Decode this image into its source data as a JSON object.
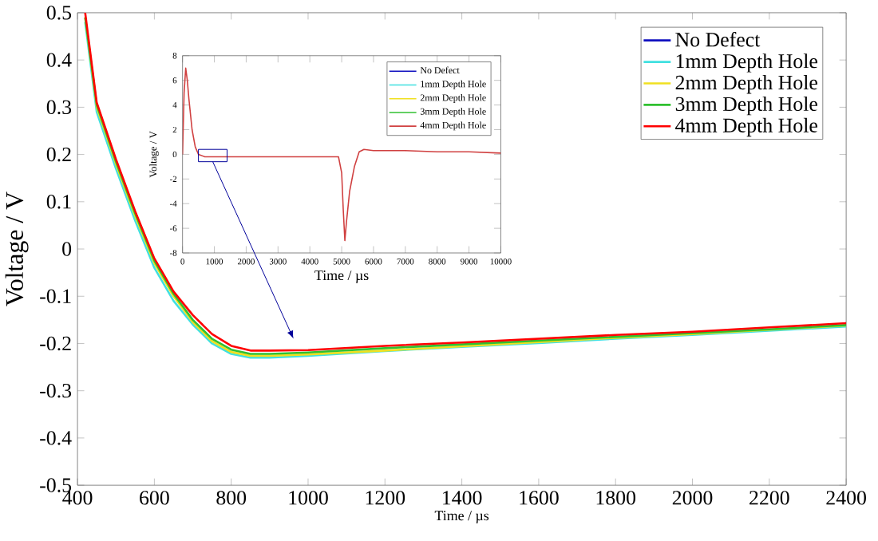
{
  "chart_data": [
    {
      "type": "line",
      "xlabel": "Time / µs",
      "ylabel": "Voltage / V",
      "xlim": [
        400,
        2400
      ],
      "ylim": [
        -0.5,
        0.5
      ],
      "xticks": [
        400,
        600,
        800,
        1000,
        1200,
        1400,
        1600,
        1800,
        2000,
        2200,
        2400
      ],
      "yticks": [
        -0.5,
        -0.4,
        -0.3,
        -0.2,
        -0.1,
        0,
        0.1,
        0.2,
        0.3,
        0.4,
        0.5
      ],
      "legend": "top right",
      "x": [
        420,
        450,
        500,
        550,
        600,
        650,
        700,
        750,
        800,
        850,
        900,
        1000,
        1200,
        1400,
        1600,
        1800,
        2000,
        2200,
        2400
      ],
      "series": [
        {
          "name": "No Defect",
          "color": "#1010c0",
          "values": [
            null,
            null,
            null,
            null,
            null,
            null,
            null,
            null,
            null,
            null,
            null,
            null,
            null,
            null,
            null,
            null,
            null,
            null,
            null
          ]
        },
        {
          "name": "1mm Depth Hole",
          "color": "#40e0e0",
          "values": [
            0.48,
            0.29,
            0.17,
            0.06,
            -0.04,
            -0.11,
            -0.16,
            -0.2,
            -0.222,
            -0.23,
            -0.23,
            -0.226,
            -0.216,
            -0.207,
            -0.199,
            -0.19,
            -0.182,
            -0.173,
            -0.164
          ]
        },
        {
          "name": "2mm Depth Hole",
          "color": "#f0e020",
          "values": [
            0.49,
            0.3,
            0.18,
            0.07,
            -0.03,
            -0.1,
            -0.155,
            -0.195,
            -0.218,
            -0.226,
            -0.226,
            -0.223,
            -0.215,
            -0.206,
            -0.197,
            -0.188,
            -0.18,
            -0.171,
            -0.162
          ]
        },
        {
          "name": "3mm Depth Hole",
          "color": "#30c030",
          "values": [
            0.49,
            0.305,
            0.185,
            0.075,
            -0.025,
            -0.095,
            -0.15,
            -0.19,
            -0.213,
            -0.222,
            -0.222,
            -0.219,
            -0.21,
            -0.202,
            -0.194,
            -0.186,
            -0.178,
            -0.17,
            -0.161
          ]
        },
        {
          "name": "4mm Depth Hole",
          "color": "#ff0000",
          "values": [
            0.5,
            0.31,
            0.19,
            0.08,
            -0.02,
            -0.09,
            -0.14,
            -0.18,
            -0.205,
            -0.215,
            -0.215,
            -0.214,
            -0.205,
            -0.198,
            -0.19,
            -0.182,
            -0.175,
            -0.166,
            -0.157
          ]
        }
      ]
    },
    {
      "type": "line",
      "xlabel": "Time / µs",
      "ylabel": "Voltage / V",
      "xlim": [
        0,
        10000
      ],
      "ylim": [
        -8,
        8
      ],
      "xticks": [
        0,
        1000,
        2000,
        3000,
        4000,
        5000,
        6000,
        7000,
        8000,
        9000,
        10000
      ],
      "yticks": [
        -8,
        -6,
        -4,
        -2,
        0,
        2,
        4,
        6,
        8
      ],
      "legend": "top right",
      "x": [
        0,
        50,
        100,
        150,
        200,
        300,
        400,
        500,
        700,
        1000,
        2000,
        3000,
        4000,
        4900,
        5000,
        5050,
        5100,
        5150,
        5250,
        5400,
        5550,
        5700,
        6000,
        7000,
        8000,
        9000,
        10000
      ],
      "series": [
        {
          "name": "No Defect",
          "color": "#1010c0",
          "values": [
            null,
            null,
            null,
            null,
            null,
            null,
            null,
            null,
            null,
            null,
            null,
            null,
            null,
            null,
            null,
            null,
            null,
            null,
            null,
            null,
            null,
            null,
            null,
            null,
            null,
            null,
            null
          ]
        },
        {
          "name": "1mm Depth Hole",
          "color": "#40e0e0",
          "values": [
            null,
            null,
            null,
            null,
            null,
            null,
            null,
            null,
            null,
            null,
            null,
            null,
            null,
            null,
            null,
            null,
            null,
            null,
            null,
            null,
            null,
            null,
            null,
            null,
            null,
            null,
            null
          ]
        },
        {
          "name": "2mm Depth Hole",
          "color": "#f0e020",
          "values": [
            null,
            null,
            null,
            null,
            null,
            null,
            null,
            null,
            null,
            null,
            null,
            null,
            null,
            null,
            null,
            null,
            null,
            null,
            null,
            null,
            null,
            null,
            null,
            null,
            null,
            null,
            null
          ]
        },
        {
          "name": "3mm Depth Hole",
          "color": "#30c030",
          "values": [
            null,
            null,
            null,
            null,
            null,
            null,
            null,
            null,
            null,
            null,
            null,
            null,
            null,
            null,
            null,
            null,
            null,
            null,
            null,
            null,
            null,
            null,
            null,
            null,
            null,
            null,
            null
          ]
        },
        {
          "name": "4mm Depth Hole",
          "color": "#d04040",
          "values": [
            0,
            5,
            7,
            6,
            4.5,
            2,
            0.6,
            0,
            -0.2,
            -0.2,
            -0.2,
            -0.2,
            -0.2,
            -0.2,
            -1.5,
            -4.5,
            -7,
            -5.5,
            -3,
            -1,
            0.2,
            0.4,
            0.3,
            0.3,
            0.2,
            0.2,
            0.1
          ]
        }
      ]
    }
  ]
}
